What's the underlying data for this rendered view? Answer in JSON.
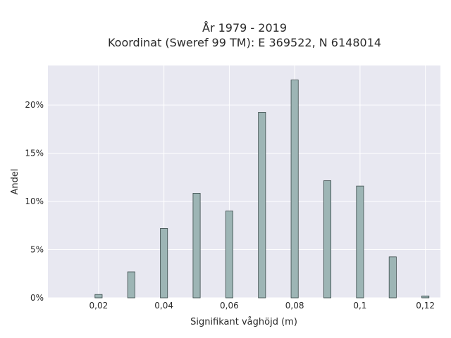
{
  "chart_data": {
    "type": "bar",
    "title_line1": "År 1979 - 2019",
    "title_line2": "Koordinat (Sweref 99 TM): E 369522, N 6148014",
    "xlabel": "Signifikant våghöjd (m)",
    "ylabel": "Andel",
    "xlim": [
      0.0045,
      0.1246
    ],
    "ylim": [
      0,
      24.1
    ],
    "x_ticks": [
      0.02,
      0.04,
      0.06,
      0.08,
      0.1,
      0.12
    ],
    "x_tick_labels": [
      "0,02",
      "0,04",
      "0,06",
      "0,08",
      "0,1",
      "0,12"
    ],
    "y_ticks": [
      0,
      5,
      10,
      15,
      20
    ],
    "y_tick_labels": [
      "0%",
      "5%",
      "10%",
      "15%",
      "20%"
    ],
    "bar_width": 0.0022,
    "x": [
      0.02,
      0.03,
      0.04,
      0.05,
      0.06,
      0.07,
      0.08,
      0.09,
      0.1,
      0.11,
      0.12
    ],
    "values": [
      0.35,
      2.7,
      7.2,
      10.85,
      9.0,
      19.25,
      22.6,
      12.15,
      11.6,
      4.25,
      0.2
    ],
    "bar_color": "#9db5b5",
    "bar_edge_color": "#3a4a4a",
    "plot_background": "#e8e8f1",
    "grid_color": "#ffffff",
    "grid": true
  }
}
